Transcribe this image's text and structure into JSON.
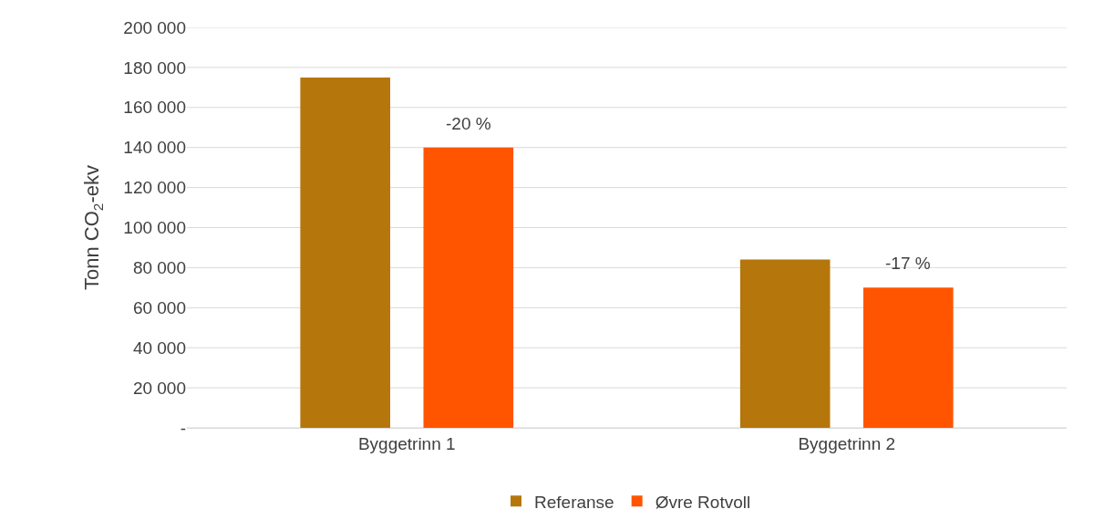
{
  "chart_data": {
    "type": "bar",
    "ylabel": "Tonn CO$_{2}$-ekv",
    "categories": [
      "Byggetrinn 1",
      "Byggetrinn 2"
    ],
    "series": [
      {
        "name": "Referanse",
        "color": "#b5770b",
        "values": [
          175000,
          84000
        ]
      },
      {
        "name": "Øvre Rotvoll",
        "color": "#ff5500",
        "values": [
          140000,
          70000
        ]
      }
    ],
    "annotations": [
      "-20 %",
      "-17 %"
    ],
    "ylim": [
      0,
      200000
    ],
    "yticks": [
      {
        "value": 0,
        "label": "-"
      },
      {
        "value": 20000,
        "label": "20 000"
      },
      {
        "value": 40000,
        "label": "40 000"
      },
      {
        "value": 60000,
        "label": "60 000"
      },
      {
        "value": 80000,
        "label": "80 000"
      },
      {
        "value": 100000,
        "label": "100 000"
      },
      {
        "value": 120000,
        "label": "120 000"
      },
      {
        "value": 140000,
        "label": "140 000"
      },
      {
        "value": 160000,
        "label": "160 000"
      },
      {
        "value": 180000,
        "label": "180 000"
      },
      {
        "value": 200000,
        "label": "200 000"
      }
    ],
    "grid": "y",
    "legend": "bottom"
  }
}
